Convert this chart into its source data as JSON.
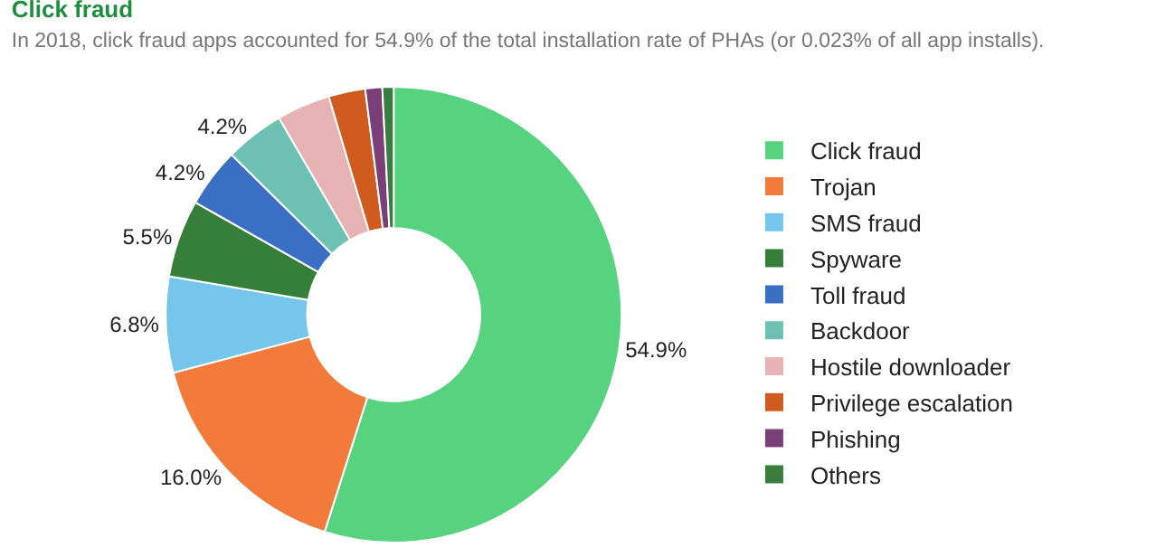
{
  "chart_data": {
    "type": "donut",
    "title": "Click fraud",
    "subtitle": "In 2018, click fraud apps accounted for 54.9% of the total installation rate of PHAs (or 0.023% of all app installs).",
    "categories": [
      "Click fraud",
      "Trojan",
      "SMS fraud",
      "Spyware",
      "Toll fraud",
      "Backdoor",
      "Hostile downloader",
      "Privilege escalation",
      "Phishing",
      "Others"
    ],
    "values": [
      54.9,
      16.0,
      6.8,
      5.5,
      4.2,
      4.2,
      3.8,
      2.6,
      1.2,
      0.8
    ],
    "value_labels": [
      "54.9%",
      "16.0%",
      "6.8%",
      "5.5%",
      "4.2%",
      "4.2%",
      null,
      null,
      null,
      null
    ],
    "colors": [
      "#57d27f",
      "#f27b3c",
      "#76c6ec",
      "#367f3b",
      "#3a6fc4",
      "#6cc1b3",
      "#e6b2b3",
      "#cf5b1e",
      "#7b3f77",
      "#3b7d3f"
    ],
    "legend": "right"
  }
}
